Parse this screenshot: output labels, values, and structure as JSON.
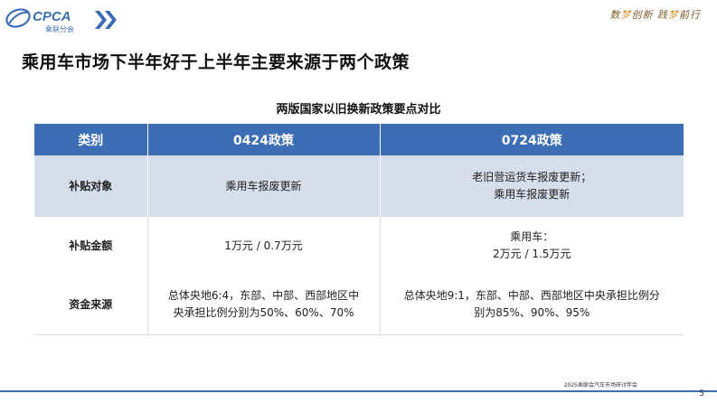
{
  "brand": {
    "logo_text": "CPCA",
    "logo_subtext": "乘联分会",
    "slogan_parts": [
      "数",
      "梦",
      "创新  践",
      "梦",
      "前行"
    ],
    "colors": {
      "primary": "#3d6db5",
      "light_row": "#d7deeb",
      "slogan_highlight": "#d8912a"
    }
  },
  "slide": {
    "title": "乘用车市场下半年好于上半年主要来源于两个政策",
    "caption": "两版国家以旧换新政策要点对比",
    "footer_text": "2025乘联会汽车市场研讨年会",
    "page_number": "5"
  },
  "table": {
    "headers": [
      "类别",
      "0424政策",
      "0724政策"
    ],
    "rows": [
      {
        "category": "补贴对象",
        "policy_0424": [
          "乘用车报废更新"
        ],
        "policy_0724": [
          "老旧营运货车报废更新；",
          "乘用车报废更新"
        ]
      },
      {
        "category": "补贴金额",
        "policy_0424": [
          "1万元 / 0.7万元"
        ],
        "policy_0724": [
          "乘用车：",
          "2万元 / 1.5万元"
        ]
      },
      {
        "category": "资金来源",
        "policy_0424": [
          "总体央地6:4，东部、中部、西部地区中",
          "央承担比例分别为50%、60%、70%"
        ],
        "policy_0724": [
          "总体央地9:1，东部、中部、西部地区中央承担比例分",
          "别为85%、90%、95%"
        ]
      }
    ]
  }
}
